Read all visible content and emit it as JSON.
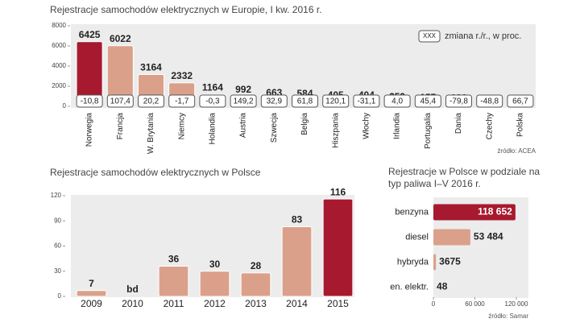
{
  "chart_data": [
    {
      "type": "bar",
      "title": "Rejestracje samochodów elektrycznych w Europie, I kw. 2016 r.",
      "categories": [
        "Norwegia",
        "Francja",
        "W. Brytania",
        "Niemcy",
        "Holandia",
        "Austria",
        "Szwecja",
        "Belgia",
        "Hiszpania",
        "Włochy",
        "Irlandia",
        "Portugalia",
        "Dania",
        "Czechy",
        "Polska"
      ],
      "values": [
        6425,
        6022,
        3164,
        2332,
        1164,
        992,
        663,
        584,
        405,
        404,
        259,
        157,
        126,
        44,
        20
      ],
      "colors": [
        "#a6192e",
        "#dba08a",
        "#dba08a",
        "#dba08a",
        "#dba08a",
        "#dba08a",
        "#dba08a",
        "#dba08a",
        "#dba08a",
        "#dba08a",
        "#dba08a",
        "#dba08a",
        "#dba08a",
        "#dba08a",
        "#dba08a"
      ],
      "change_labels": [
        "-10,8",
        "107,4",
        "20,2",
        "-1,7",
        "-0,3",
        "149,2",
        "32,9",
        "61,8",
        "120,1",
        "-31,1",
        "4,0",
        "45,4",
        "-79,8",
        "-48,8",
        "66,7"
      ],
      "legend_box_label": "XXX",
      "legend_label": "zmiana r./r., w proc.",
      "ylim": [
        0,
        8000
      ],
      "yticks": [
        0,
        2000,
        4000,
        6000,
        8000
      ],
      "source": "źródło: ACEA"
    },
    {
      "type": "bar",
      "title": "Rejestracje samochodów elektrycznych w Polsce",
      "categories": [
        "2009",
        "2010",
        "2011",
        "2012",
        "2013",
        "2014",
        "2015"
      ],
      "values": [
        7,
        null,
        36,
        30,
        28,
        83,
        116
      ],
      "value_labels": [
        "7",
        "bd",
        "36",
        "30",
        "28",
        "83",
        "116"
      ],
      "colors": [
        "#dba08a",
        "#dba08a",
        "#dba08a",
        "#dba08a",
        "#dba08a",
        "#dba08a",
        "#a6192e"
      ],
      "ylim": [
        0,
        120
      ],
      "yticks": [
        0,
        30,
        60,
        90,
        120
      ]
    },
    {
      "type": "hbar",
      "title": "Rejestracje w Polsce w podziale na typ paliwa I–V 2016 r.",
      "categories": [
        "benzyna",
        "diesel",
        "hybryda",
        "en. elektr."
      ],
      "values": [
        118652,
        53484,
        3675,
        48
      ],
      "value_labels": [
        "118 652",
        "53 484",
        "3675",
        "48"
      ],
      "colors": [
        "#a6192e",
        "#dba08a",
        "#dba08a",
        "#dba08a"
      ],
      "xlim": [
        0,
        120000
      ],
      "xticks": [
        0,
        {
          "value": 60000,
          "label": "60 000"
        },
        {
          "value": 120000,
          "label": "120 000"
        }
      ],
      "source": "źródło: Samar"
    }
  ]
}
